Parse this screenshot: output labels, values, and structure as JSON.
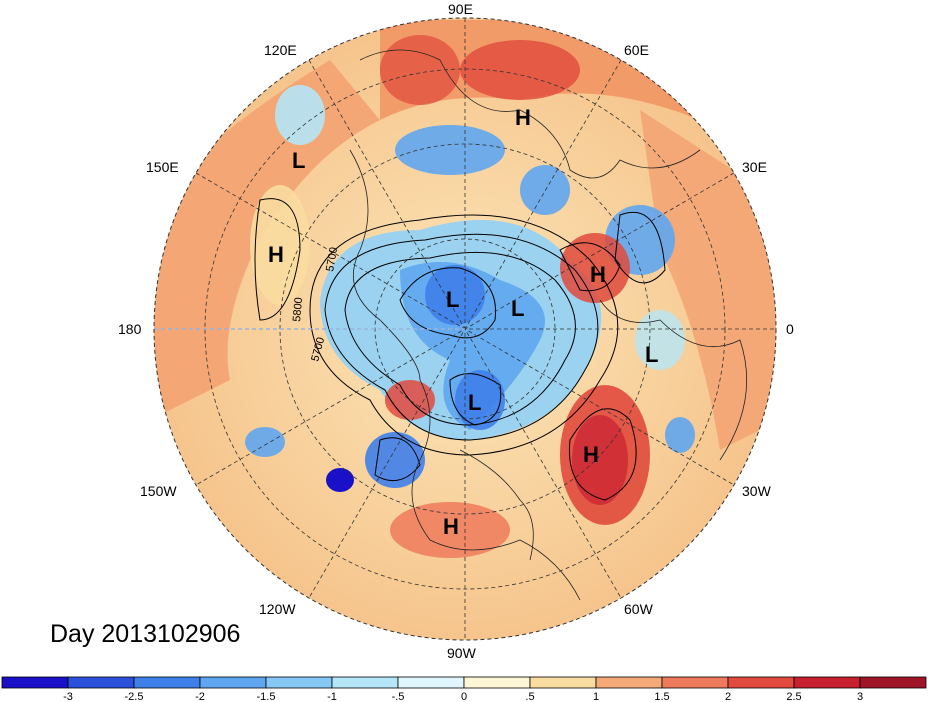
{
  "map": {
    "longitude_labels": [
      "90E",
      "60E",
      "30E",
      "0",
      "30W",
      "60W",
      "90W",
      "120W",
      "150W",
      "180",
      "150E",
      "120E"
    ],
    "contour_labels": [
      "5700",
      "5800",
      "5700"
    ],
    "pressure_centers": [
      {
        "type": "H",
        "lon": "~70E region"
      },
      {
        "type": "L",
        "lon": "~140E region"
      },
      {
        "type": "H",
        "lon": "~170E region"
      },
      {
        "type": "H",
        "lon": "~15E region"
      },
      {
        "type": "L",
        "lon": "~polar Siberia"
      },
      {
        "type": "L",
        "lon": "~polar Europe"
      },
      {
        "type": "L",
        "lon": "~0 lon Africa"
      },
      {
        "type": "L",
        "lon": "~Hudson Bay"
      },
      {
        "type": "H",
        "lon": "~35W Atlantic"
      },
      {
        "type": "H",
        "lon": "~Caribbean"
      }
    ],
    "colors": {
      "strong_neg": "#1e1ec8",
      "neg": "#4a8ae6",
      "weak_neg": "#9ad2f0",
      "neutral": "#fdf6e0",
      "weak_pos": "#f8d9a0",
      "pos": "#f3a070",
      "strong_pos": "#e04a3c"
    }
  },
  "day_label": "Day 2013102906",
  "colorbar": {
    "ticks": [
      "-3",
      "-2.5",
      "-2",
      "-1.5",
      "-1",
      "-.5",
      "0",
      ".5",
      "1",
      "1.5",
      "2",
      "2.5",
      "3"
    ],
    "colors": [
      "#1a10c8",
      "#2a50dc",
      "#3f7fea",
      "#5fa6f0",
      "#85c8f4",
      "#b4e6f8",
      "#e1f6fc",
      "#fdf6d6",
      "#f9dca0",
      "#f5a878",
      "#ee7a5c",
      "#e24a3e",
      "#c82030",
      "#a01428"
    ]
  }
}
